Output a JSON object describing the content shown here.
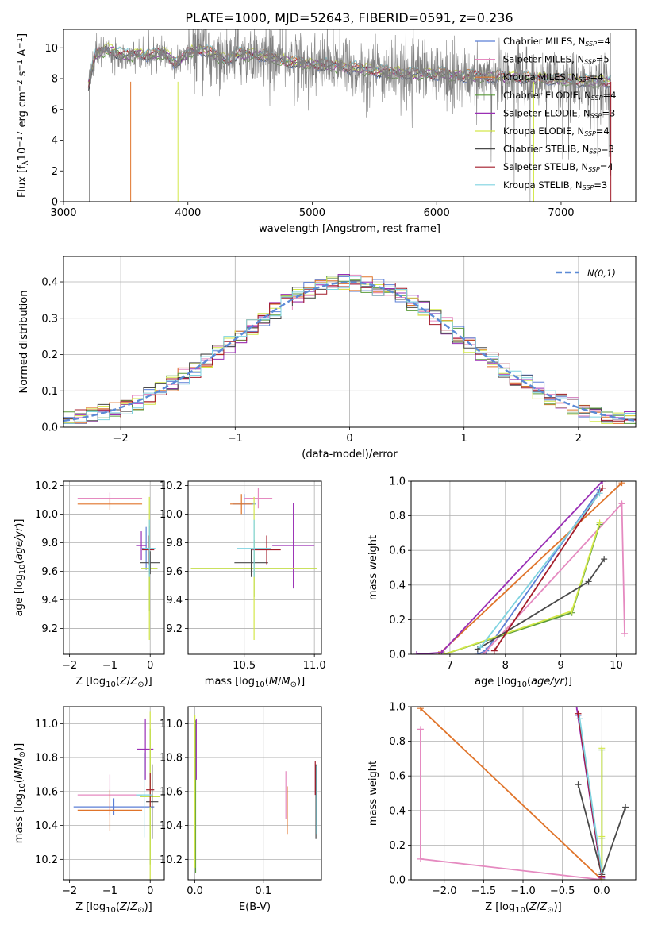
{
  "figure": {
    "title": "PLATE=1000, MJD=52643, FIBERID=0591, z=0.236"
  },
  "colors": {
    "Chabrier MILES": "#5b7fd6",
    "Salpeter MILES": "#e58ac0",
    "Kroupa MILES": "#e0742a",
    "Chabrier ELODIE": "#5a9a3a",
    "Salpeter ELODIE": "#9a2fb5",
    "Kroupa ELODIE": "#d3e84a",
    "Chabrier STELIB": "#4a4a4a",
    "Salpeter STELIB": "#a31c2a",
    "Kroupa STELIB": "#7fd3e0",
    "data": "#808080",
    "gaussian": "#5b8ad6"
  },
  "chart_data": [
    {
      "id": "spectrum",
      "type": "line",
      "xlabel": "wavelength [Angstrom, rest frame]",
      "ylabel": "Flux [f_λ10^-17 erg cm^-2 s^-1 A^-1]",
      "xlim": [
        3000,
        7600
      ],
      "ylim": [
        0,
        11.2
      ],
      "xticks": [
        "3000",
        "4000",
        "5000",
        "6000",
        "7000"
      ],
      "yticks": [
        "0",
        "2",
        "4",
        "6",
        "8",
        "10"
      ],
      "grid": false,
      "legend_position": "right",
      "legend": [
        {
          "name": "Chabrier MILES",
          "nssp": "4"
        },
        {
          "name": "Salpeter MILES",
          "nssp": "5"
        },
        {
          "name": "Kroupa MILES",
          "nssp": "4"
        },
        {
          "name": "Chabrier ELODIE",
          "nssp": "4"
        },
        {
          "name": "Salpeter ELODIE",
          "nssp": "3"
        },
        {
          "name": "Kroupa ELODIE",
          "nssp": "4"
        },
        {
          "name": "Chabrier STELIB",
          "nssp": "3"
        },
        {
          "name": "Salpeter STELIB",
          "nssp": "4"
        },
        {
          "name": "Kroupa STELIB",
          "nssp": "3"
        }
      ],
      "data_range": [
        3200,
        7400
      ],
      "model_continuum": [
        [
          3200,
          7.6
        ],
        [
          3260,
          9.6
        ],
        [
          3350,
          9.9
        ],
        [
          3500,
          9.5
        ],
        [
          3600,
          9.6
        ],
        [
          3700,
          9.5
        ],
        [
          3800,
          9.7
        ],
        [
          3900,
          9.0
        ],
        [
          3950,
          9.3
        ],
        [
          4000,
          9.7
        ],
        [
          4100,
          9.9
        ],
        [
          4200,
          9.6
        ],
        [
          4300,
          9.2
        ],
        [
          4400,
          9.6
        ],
        [
          4600,
          9.5
        ],
        [
          4800,
          9.1
        ],
        [
          5000,
          8.9
        ],
        [
          5200,
          8.8
        ],
        [
          5400,
          8.6
        ],
        [
          5600,
          8.4
        ],
        [
          5800,
          8.3
        ],
        [
          6000,
          8.3
        ],
        [
          6200,
          8.2
        ],
        [
          6400,
          8.1
        ],
        [
          6600,
          8.1
        ],
        [
          6800,
          8.0
        ],
        [
          7000,
          7.9
        ],
        [
          7200,
          7.8
        ],
        [
          7400,
          7.8
        ]
      ]
    },
    {
      "id": "residual_hist",
      "type": "histogram",
      "xlabel": "(data-model)/error",
      "ylabel": "Normed distribution",
      "xlim": [
        -2.5,
        2.5
      ],
      "ylim": [
        0,
        0.47
      ],
      "xticks": [
        "−2",
        "−1",
        "0",
        "1",
        "2"
      ],
      "yticks": [
        "0.0",
        "0.1",
        "0.2",
        "0.3",
        "0.4"
      ],
      "grid": true,
      "legend_position": "top-right",
      "legend": [
        {
          "name": "N(0,1)"
        }
      ],
      "bin_width": 0.1,
      "gaussian": {
        "mean": 0,
        "sigma": 1
      }
    },
    {
      "id": "age_vs_Z",
      "type": "errorbar",
      "xlabel": "Z [log10(Z/Z⊙)]",
      "ylabel": "age [log10(age/yr)]",
      "xlim": [
        -2.15,
        0.35
      ],
      "ylim": [
        9.02,
        10.23
      ],
      "xticks": [
        "−2",
        "−1",
        "0"
      ],
      "yticks": [
        "9.2",
        "9.4",
        "9.6",
        "9.8",
        "10.0",
        "10.2"
      ],
      "grid": true,
      "points": [
        {
          "series": "Chabrier MILES",
          "x": -0.1,
          "y": 9.76,
          "xerr": 0.1,
          "yerr": 0.15
        },
        {
          "series": "Salpeter MILES",
          "x": -1.0,
          "y": 10.11,
          "xerr": 0.8,
          "yerr": 0.04
        },
        {
          "series": "Kroupa MILES",
          "x": -1.0,
          "y": 10.07,
          "xerr": 0.8,
          "yerr": 0.04
        },
        {
          "series": "Chabrier ELODIE",
          "x": -0.02,
          "y": 9.62,
          "xerr": 0.2,
          "yerr": 0.3
        },
        {
          "series": "Salpeter ELODIE",
          "x": -0.22,
          "y": 9.78,
          "xerr": 0.13,
          "yerr": 0.1
        },
        {
          "series": "Kroupa ELODIE",
          "x": -0.02,
          "y": 9.62,
          "xerr": 0.2,
          "yerr": 0.5
        },
        {
          "series": "Chabrier STELIB",
          "x": 0.0,
          "y": 9.66,
          "xerr": 0.25,
          "yerr": 0.08
        },
        {
          "series": "Salpeter STELIB",
          "x": -0.05,
          "y": 9.75,
          "xerr": 0.15,
          "yerr": 0.1
        },
        {
          "series": "Kroupa STELIB",
          "x": -0.02,
          "y": 9.76,
          "xerr": 0.15,
          "yerr": 0.2
        }
      ]
    },
    {
      "id": "age_vs_mass",
      "type": "errorbar",
      "xlabel": "mass [log10(M/M⊙)]",
      "ylabel": "",
      "xlim": [
        10.1,
        11.05
      ],
      "ylim": [
        9.02,
        10.23
      ],
      "xticks": [
        "10.5",
        "11.0"
      ],
      "yticks": [
        "9.2",
        "9.4",
        "9.6",
        "9.8",
        "10.0",
        "10.2"
      ],
      "grid": true,
      "points": [
        {
          "series": "Chabrier MILES",
          "x": 10.5,
          "y": 10.07,
          "xerr": 0.08,
          "yerr": 0.07
        },
        {
          "series": "Salpeter MILES",
          "x": 10.6,
          "y": 10.11,
          "xerr": 0.1,
          "yerr": 0.07
        },
        {
          "series": "Kroupa MILES",
          "x": 10.48,
          "y": 10.07,
          "xerr": 0.08,
          "yerr": 0.07
        },
        {
          "series": "Chabrier ELODIE",
          "x": 10.57,
          "y": 9.62,
          "xerr": 0.45,
          "yerr": 0.2
        },
        {
          "series": "Salpeter ELODIE",
          "x": 10.85,
          "y": 9.78,
          "xerr": 0.15,
          "yerr": 0.3
        },
        {
          "series": "Kroupa ELODIE",
          "x": 10.57,
          "y": 9.62,
          "xerr": 0.45,
          "yerr": 0.5
        },
        {
          "series": "Chabrier STELIB",
          "x": 10.55,
          "y": 9.66,
          "xerr": 0.12,
          "yerr": 0.1
        },
        {
          "series": "Salpeter STELIB",
          "x": 10.66,
          "y": 9.75,
          "xerr": 0.1,
          "yerr": 0.1
        },
        {
          "series": "Kroupa STELIB",
          "x": 10.57,
          "y": 9.76,
          "xerr": 0.12,
          "yerr": 0.2
        }
      ]
    },
    {
      "id": "cumweight_vs_age",
      "type": "line",
      "xlabel": "age [log10(age/yr)]",
      "ylabel": "mass weight",
      "xlim": [
        6.3,
        10.35
      ],
      "ylim": [
        0,
        1
      ],
      "xticks": [
        "7",
        "8",
        "9",
        "10"
      ],
      "yticks": [
        "0.0",
        "0.2",
        "0.4",
        "0.6",
        "0.8",
        "1.0"
      ],
      "grid": true,
      "series": [
        {
          "name": "Chabrier MILES",
          "points": [
            [
              7.5,
              0.0
            ],
            [
              7.65,
              0.02
            ],
            [
              9.7,
              0.95
            ]
          ]
        },
        {
          "name": "Salpeter MILES",
          "points": [
            [
              7.6,
              0.0
            ],
            [
              10.1,
              0.87
            ],
            [
              10.15,
              0.12
            ]
          ]
        },
        {
          "name": "Kroupa MILES",
          "points": [
            [
              6.8,
              0.0
            ],
            [
              10.1,
              0.99
            ]
          ]
        },
        {
          "name": "Chabrier ELODIE",
          "points": [
            [
              6.9,
              0.0
            ],
            [
              9.2,
              0.24
            ],
            [
              9.7,
              0.75
            ]
          ]
        },
        {
          "name": "Salpeter ELODIE",
          "points": [
            [
              6.4,
              0.0
            ],
            [
              6.85,
              0.01
            ],
            [
              9.75,
              1.0
            ]
          ]
        },
        {
          "name": "Kroupa ELODIE",
          "points": [
            [
              6.9,
              0.0
            ],
            [
              9.2,
              0.25
            ],
            [
              9.7,
              0.76
            ]
          ]
        },
        {
          "name": "Chabrier STELIB",
          "points": [
            [
              7.5,
              0.03
            ],
            [
              9.5,
              0.42
            ],
            [
              9.78,
              0.55
            ]
          ]
        },
        {
          "name": "Salpeter STELIB",
          "points": [
            [
              7.8,
              0.02
            ],
            [
              9.75,
              0.96
            ]
          ]
        },
        {
          "name": "Kroupa STELIB",
          "points": [
            [
              7.55,
              0.04
            ],
            [
              9.7,
              0.93
            ]
          ]
        }
      ]
    },
    {
      "id": "mass_vs_Z",
      "type": "errorbar",
      "xlabel": "Z [log10(Z/Z⊙)]",
      "ylabel": "mass [log10(M/M⊙)]",
      "xlim": [
        -2.15,
        0.35
      ],
      "ylim": [
        10.08,
        11.1
      ],
      "xticks": [
        "−2",
        "−1",
        "0"
      ],
      "yticks": [
        "10.2",
        "10.4",
        "10.6",
        "10.8",
        "11.0"
      ],
      "grid": true,
      "points": [
        {
          "series": "Chabrier MILES",
          "x": -0.9,
          "y": 10.51,
          "xerr": 1.0,
          "yerr": 0.05
        },
        {
          "series": "Salpeter MILES",
          "x": -1.0,
          "y": 10.58,
          "xerr": 0.8,
          "yerr": 0.12
        },
        {
          "series": "Kroupa MILES",
          "x": -1.0,
          "y": 10.49,
          "xerr": 0.8,
          "yerr": 0.12
        },
        {
          "series": "Chabrier ELODIE",
          "x": 0.0,
          "y": 10.57,
          "xerr": 0.25,
          "yerr": 0.4
        },
        {
          "series": "Salpeter ELODIE",
          "x": -0.12,
          "y": 10.85,
          "xerr": 0.2,
          "yerr": 0.18
        },
        {
          "series": "Kroupa ELODIE",
          "x": 0.0,
          "y": 10.57,
          "xerr": 0.25,
          "yerr": 0.5
        },
        {
          "series": "Chabrier STELIB",
          "x": 0.05,
          "y": 10.54,
          "xerr": 0.15,
          "yerr": 0.22
        },
        {
          "series": "Salpeter STELIB",
          "x": 0.0,
          "y": 10.61,
          "xerr": 0.1,
          "yerr": 0.1
        },
        {
          "series": "Kroupa STELIB",
          "x": -0.15,
          "y": 10.58,
          "xerr": 0.2,
          "yerr": 0.25
        }
      ]
    },
    {
      "id": "mass_vs_ebv",
      "type": "errorbar",
      "xlabel": "E(B-V)",
      "ylabel": "",
      "xlim": [
        -0.01,
        0.185
      ],
      "ylim": [
        10.08,
        11.1
      ],
      "xticks": [
        "0.0",
        "0.1"
      ],
      "yticks": [
        "10.2",
        "10.4",
        "10.6",
        "10.8",
        "11.0"
      ],
      "grid": true,
      "points": [
        {
          "series": "Chabrier MILES",
          "x": 0.0,
          "y": 10.6,
          "xerr": 0,
          "yerr": 0.4
        },
        {
          "series": "Salpeter MILES",
          "x": 0.133,
          "y": 10.58,
          "xerr": 0,
          "yerr": 0.14
        },
        {
          "series": "Kroupa MILES",
          "x": 0.135,
          "y": 10.49,
          "xerr": 0,
          "yerr": 0.14
        },
        {
          "series": "Chabrier ELODIE",
          "x": 0.001,
          "y": 10.57,
          "xerr": 0,
          "yerr": 0.45
        },
        {
          "series": "Salpeter ELODIE",
          "x": 0.002,
          "y": 10.85,
          "xerr": 0,
          "yerr": 0.18
        },
        {
          "series": "Kroupa ELODIE",
          "x": 0.0,
          "y": 10.6,
          "xerr": 0,
          "yerr": 0.45
        },
        {
          "series": "Chabrier STELIB",
          "x": 0.177,
          "y": 10.54,
          "xerr": 0,
          "yerr": 0.22
        },
        {
          "series": "Salpeter STELIB",
          "x": 0.176,
          "y": 10.68,
          "xerr": 0,
          "yerr": 0.1
        },
        {
          "series": "Kroupa STELIB",
          "x": 0.178,
          "y": 10.55,
          "xerr": 0,
          "yerr": 0.2
        }
      ]
    },
    {
      "id": "cumweight_vs_Z",
      "type": "line",
      "xlabel": "Z [log10(Z/Z⊙)]",
      "ylabel": "mass weight",
      "xlim": [
        -2.42,
        0.43
      ],
      "ylim": [
        0,
        1
      ],
      "xticks": [
        "−2.0",
        "−1.5",
        "−1.0",
        "−0.5",
        "0.0"
      ],
      "yticks": [
        "0.0",
        "0.2",
        "0.4",
        "0.6",
        "0.8",
        "1.0"
      ],
      "grid": true,
      "series": [
        {
          "name": "Chabrier MILES",
          "points": [
            [
              -0.3,
              0.95
            ],
            [
              0.0,
              0.01
            ]
          ]
        },
        {
          "name": "Salpeter MILES",
          "points": [
            [
              -2.3,
              0.87
            ],
            [
              -2.3,
              0.12
            ],
            [
              0.0,
              0.0
            ]
          ]
        },
        {
          "name": "Kroupa MILES",
          "points": [
            [
              -2.3,
              0.99
            ],
            [
              0.0,
              0.0
            ]
          ]
        },
        {
          "name": "Chabrier ELODIE",
          "points": [
            [
              0.0,
              0.75
            ],
            [
              0.0,
              0.24
            ],
            [
              0.0,
              0.0
            ]
          ]
        },
        {
          "name": "Salpeter ELODIE",
          "points": [
            [
              -0.32,
              1.0
            ],
            [
              0.0,
              0.01
            ]
          ]
        },
        {
          "name": "Kroupa ELODIE",
          "points": [
            [
              0.0,
              0.76
            ],
            [
              0.0,
              0.25
            ],
            [
              0.0,
              0.0
            ]
          ]
        },
        {
          "name": "Chabrier STELIB",
          "points": [
            [
              -0.3,
              0.55
            ],
            [
              0.0,
              0.03
            ],
            [
              0.3,
              0.42
            ]
          ]
        },
        {
          "name": "Salpeter STELIB",
          "points": [
            [
              -0.3,
              0.96
            ],
            [
              0.0,
              0.02
            ]
          ]
        },
        {
          "name": "Kroupa STELIB",
          "points": [
            [
              -0.28,
              0.93
            ],
            [
              0.0,
              0.04
            ]
          ]
        }
      ]
    }
  ]
}
